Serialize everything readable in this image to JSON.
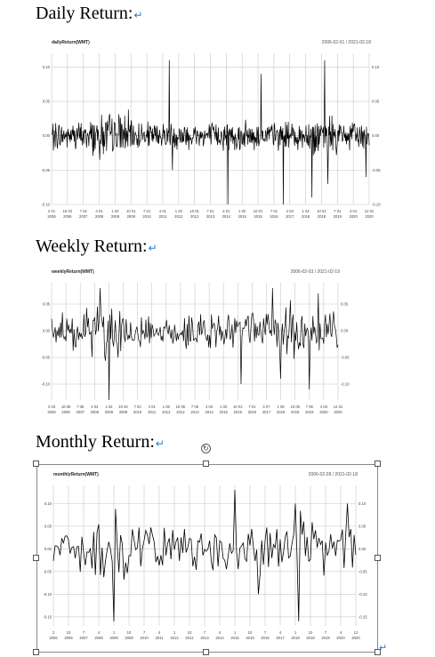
{
  "headings": {
    "daily": "Daily Return:",
    "weekly": "Weekly Return:",
    "monthly": "Monthly Return:",
    "return_mark": "↵"
  },
  "icons": {
    "rotate": "rotate-handle-icon",
    "return_mark": "paragraph-return-icon"
  },
  "colors": {
    "series": "#000000",
    "grid": "#c8c8c8",
    "mark": "#2b78d6"
  },
  "chart_data": [
    {
      "id": "daily",
      "type": "line",
      "title": "dailyReturn(WMT)",
      "range_label": "2006-02-01 / 2021-02-18",
      "y_ticks": [
        "0.10",
        "0.05",
        "0.00",
        "-0.05",
        "-0.10"
      ],
      "y_tick_values": [
        0.1,
        0.05,
        0.0,
        -0.05,
        -0.1
      ],
      "ylim": [
        -0.1,
        0.12
      ],
      "x_ticks": [
        [
          "2 01",
          "2006"
        ],
        [
          "10 02",
          "2006"
        ],
        [
          "7 02",
          "2007"
        ],
        [
          "4 01",
          "2008"
        ],
        [
          "1 02",
          "2009"
        ],
        [
          "10 01",
          "2009"
        ],
        [
          "7 01",
          "2010"
        ],
        [
          "4 01",
          "2011"
        ],
        [
          "1 03",
          "2012"
        ],
        [
          "10 01",
          "2012"
        ],
        [
          "7 01",
          "2013"
        ],
        [
          "4 01",
          "2014"
        ],
        [
          "1 02",
          "2015"
        ],
        [
          "10 01",
          "2015"
        ],
        [
          "7 01",
          "2016"
        ],
        [
          "4 03",
          "2017"
        ],
        [
          "1 02",
          "2018"
        ],
        [
          "10 01",
          "2018"
        ],
        [
          "7 01",
          "2019"
        ],
        [
          "4 01",
          "2020"
        ],
        [
          "12 01",
          "2020"
        ]
      ],
      "spikes": [
        {
          "at": 0.37,
          "value": 0.11
        },
        {
          "at": 0.38,
          "value": -0.05
        },
        {
          "at": 0.66,
          "value": 0.09
        },
        {
          "at": 0.555,
          "value": -0.1
        },
        {
          "at": 0.73,
          "value": -0.1
        },
        {
          "at": 0.82,
          "value": -0.09
        },
        {
          "at": 0.86,
          "value": 0.11
        },
        {
          "at": 0.87,
          "value": -0.07
        },
        {
          "at": 0.99,
          "value": -0.06
        }
      ],
      "volatility": 0.018,
      "samples": 700
    },
    {
      "id": "weekly",
      "type": "line",
      "title": "weeklyReturn(WMT)",
      "range_label": "2006-02-03 / 2021-02-19",
      "y_ticks": [
        "0.05",
        "0.00",
        "-0.05",
        "-0.10"
      ],
      "y_tick_values": [
        0.05,
        0.0,
        -0.05,
        -0.1
      ],
      "ylim": [
        -0.13,
        0.09
      ],
      "x_ticks": [
        [
          "2 03",
          "2006"
        ],
        [
          "10 06",
          "2006"
        ],
        [
          "7 06",
          "2007"
        ],
        [
          "4 04",
          "2008"
        ],
        [
          "1 02",
          "2009"
        ],
        [
          "10 02",
          "2009"
        ],
        [
          "7 02",
          "2010"
        ],
        [
          "4 01",
          "2011"
        ],
        [
          "1 06",
          "2012"
        ],
        [
          "10 05",
          "2012"
        ],
        [
          "7 05",
          "2013"
        ],
        [
          "4 04",
          "2014"
        ],
        [
          "1 02",
          "2015"
        ],
        [
          "10 02",
          "2015"
        ],
        [
          "7 01",
          "2016"
        ],
        [
          "4 07",
          "2017"
        ],
        [
          "1 05",
          "2018"
        ],
        [
          "10 05",
          "2018"
        ],
        [
          "7 05",
          "2019"
        ],
        [
          "4 03",
          "2020"
        ],
        [
          "12 31",
          "2020"
        ]
      ],
      "spikes": [
        {
          "at": 0.2,
          "value": -0.13
        },
        {
          "at": 0.17,
          "value": 0.08
        },
        {
          "at": 0.66,
          "value": -0.1
        },
        {
          "at": 0.77,
          "value": 0.08
        },
        {
          "at": 0.8,
          "value": -0.09
        },
        {
          "at": 0.9,
          "value": -0.11
        },
        {
          "at": 0.93,
          "value": 0.07
        }
      ],
      "volatility": 0.03,
      "samples": 320
    },
    {
      "id": "monthly",
      "type": "line",
      "title": "monthlyReturn(WMT)",
      "range_label": "2006-02-28 / 2021-02-18",
      "y_ticks": [
        "0.10",
        "0.05",
        "0.00",
        "-0.05",
        "-0.10",
        "-0.15"
      ],
      "y_tick_values": [
        0.1,
        0.05,
        0.0,
        -0.05,
        -0.1,
        -0.15
      ],
      "ylim": [
        -0.17,
        0.14
      ],
      "x_ticks": [
        [
          "2",
          "2006"
        ],
        [
          "10",
          "2006"
        ],
        [
          "7",
          "2007"
        ],
        [
          "4",
          "2008"
        ],
        [
          "1",
          "2009"
        ],
        [
          "10",
          "2009"
        ],
        [
          "7",
          "2010"
        ],
        [
          "4",
          "2011"
        ],
        [
          "1",
          "2012"
        ],
        [
          "10",
          "2012"
        ],
        [
          "7",
          "2013"
        ],
        [
          "4",
          "2014"
        ],
        [
          "1",
          "2015"
        ],
        [
          "10",
          "2015"
        ],
        [
          "7",
          "2016"
        ],
        [
          "4",
          "2017"
        ],
        [
          "1",
          "2018"
        ],
        [
          "10",
          "2018"
        ],
        [
          "7",
          "2019"
        ],
        [
          "4",
          "2020"
        ],
        [
          "12",
          "2020"
        ]
      ],
      "spikes": [
        {
          "at": 0.2,
          "value": -0.16
        },
        {
          "at": 0.6,
          "value": 0.13
        },
        {
          "at": 0.68,
          "value": -0.1
        },
        {
          "at": 0.8,
          "value": 0.1
        },
        {
          "at": 0.81,
          "value": -0.16
        },
        {
          "at": 0.97,
          "value": 0.1
        }
      ],
      "volatility": 0.045,
      "samples": 181
    }
  ]
}
